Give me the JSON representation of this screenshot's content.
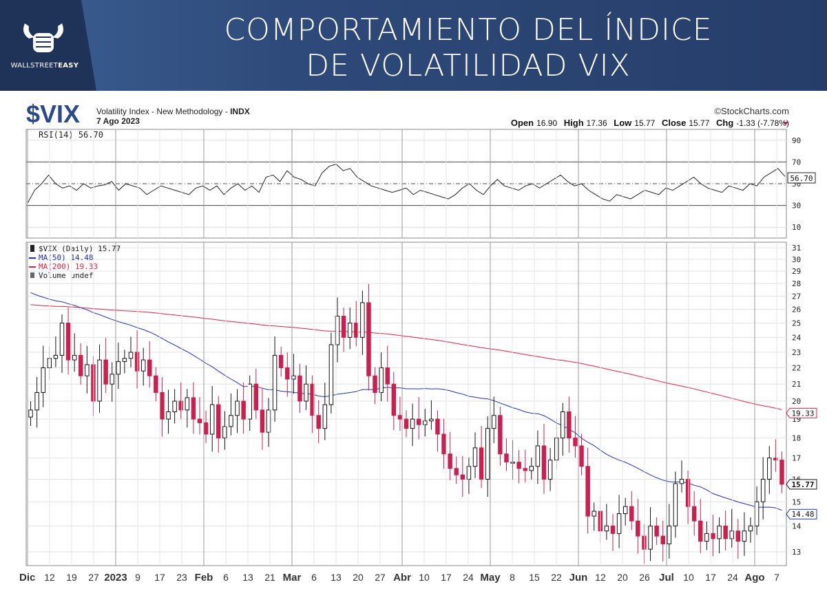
{
  "banner": {
    "title_line1": "COMPORTAMIENTO DEL ÍNDICE",
    "title_line2": "DE VOLATILIDAD VIX",
    "logo_text_a": "WALLSTREET",
    "logo_text_b": "EASY"
  },
  "header": {
    "symbol": "$VIX",
    "description": "Volatility Index - New Methodology - ",
    "exchange": "INDX",
    "date": "7 Ago 2023",
    "source": "©StockCharts.com",
    "ohlc": {
      "open_label": "Open",
      "open": "16.90",
      "high_label": "High",
      "high": "17.36",
      "low_label": "Low",
      "low": "15.77",
      "close_label": "Close",
      "close": "15.77",
      "chg_label": "Chg",
      "chg": "-1.33 (-7.78%)"
    }
  },
  "rsi_legend": "RSI(14) 56.70",
  "price_legend": {
    "main": "$VIX (Daily) 15.77",
    "ma50": "MA(50) 14.48",
    "ma200": "MA(200) 19.33",
    "volume": "Volume undef"
  },
  "colors": {
    "up_candle": "#ffffff",
    "down_candle": "#cc1f4f",
    "black_candle": "#000000",
    "ma50": "#2233aa",
    "ma200": "#dd2244",
    "banner": "#2e4a7a"
  },
  "chart_data": {
    "type": "candlestick",
    "title": "$VIX",
    "rsi": {
      "name": "RSI(14)",
      "last": 56.7,
      "ticks": [
        90,
        70,
        50,
        30,
        10
      ],
      "levels": [
        70,
        50,
        30
      ],
      "ylim": [
        0,
        100
      ],
      "values": [
        32,
        44,
        50,
        58,
        50,
        46,
        48,
        44,
        50,
        46,
        48,
        49,
        52,
        44,
        50,
        48,
        46,
        40,
        44,
        48,
        46,
        44,
        42,
        40,
        46,
        48,
        44,
        48,
        40,
        46,
        50,
        44,
        48,
        42,
        56,
        58,
        52,
        62,
        56,
        54,
        50,
        48,
        60,
        66,
        68,
        62,
        64,
        56,
        52,
        48,
        46,
        44,
        42,
        44,
        46,
        40,
        44,
        42,
        40,
        38,
        36,
        40,
        46,
        50,
        44,
        40,
        48,
        54,
        48,
        46,
        44,
        48,
        50,
        46,
        50,
        54,
        58,
        52,
        48,
        50,
        44,
        40,
        36,
        34,
        40,
        38,
        36,
        40,
        44,
        42,
        40,
        46,
        44,
        48,
        52,
        56,
        50,
        46,
        44,
        42,
        48,
        46,
        44,
        50,
        48,
        56,
        60,
        64,
        56.7
      ]
    },
    "price": {
      "ticks": [
        31,
        30,
        29,
        28,
        27,
        26,
        25,
        24,
        23,
        22,
        21,
        20,
        19,
        18,
        17,
        16,
        15,
        14,
        13
      ],
      "ylim": [
        12.5,
        31.5
      ],
      "log_scale": true,
      "last_close": 15.77,
      "closes": [
        19.5,
        20.5,
        22.0,
        22.6,
        22.8,
        25.0,
        22.5,
        22.8,
        21.5,
        22.2,
        20.0,
        22.5,
        21.0,
        21.6,
        22.4,
        22.6,
        23.0,
        21.8,
        22.5,
        21.5,
        20.5,
        19.0,
        19.4,
        20.0,
        19.5,
        20.2,
        19.0,
        18.8,
        18.2,
        19.8,
        18.0,
        18.6,
        19.2,
        20.0,
        19.0,
        21.0,
        19.5,
        18.3,
        19.5,
        22.8,
        22.0,
        21.3,
        21.5,
        20.0,
        21.0,
        19.2,
        18.5,
        19.8,
        23.5,
        25.5,
        24.0,
        25.0,
        24.0,
        26.5,
        21.5,
        20.5,
        22.0,
        21.0,
        19.2,
        19.0,
        18.5,
        19.0,
        18.7,
        18.9,
        19.0,
        18.2,
        17.2,
        16.5,
        16.2,
        16.0,
        16.6,
        17.5,
        16.0,
        18.5,
        19.2,
        17.2,
        16.8,
        16.8,
        16.5,
        16.4,
        16.6,
        17.6,
        16.0,
        16.9,
        18.0,
        19.4,
        18.0,
        17.6,
        16.6,
        14.4,
        14.6,
        13.8,
        14.0,
        13.7,
        14.5,
        14.8,
        14.2,
        13.6,
        13.1,
        14.0,
        13.6,
        13.3,
        14.0,
        15.8,
        16.0,
        14.8,
        14.2,
        13.4,
        13.7,
        13.5,
        14.0,
        13.5,
        13.8,
        13.4,
        13.8,
        14.0,
        15.0,
        16.0,
        17.0,
        16.9,
        15.77
      ]
    },
    "ma50": {
      "name": "MA(50)",
      "last": 14.48
    },
    "ma200": {
      "name": "MA(200)",
      "last": 19.33
    },
    "x_labels": [
      {
        "label": "Dic",
        "bold": true
      },
      {
        "label": "12"
      },
      {
        "label": "19"
      },
      {
        "label": "27"
      },
      {
        "label": "2023",
        "bold": true
      },
      {
        "label": "9"
      },
      {
        "label": "17"
      },
      {
        "label": "23"
      },
      {
        "label": "Feb",
        "bold": true
      },
      {
        "label": "6"
      },
      {
        "label": "13"
      },
      {
        "label": "21"
      },
      {
        "label": "Mar",
        "bold": true
      },
      {
        "label": "6"
      },
      {
        "label": "13"
      },
      {
        "label": "20"
      },
      {
        "label": "27"
      },
      {
        "label": "Abr",
        "bold": true
      },
      {
        "label": "10"
      },
      {
        "label": "17"
      },
      {
        "label": "24"
      },
      {
        "label": "May",
        "bold": true
      },
      {
        "label": "8"
      },
      {
        "label": "15"
      },
      {
        "label": "22"
      },
      {
        "label": "Jun",
        "bold": true
      },
      {
        "label": "12"
      },
      {
        "label": "20"
      },
      {
        "label": "26"
      },
      {
        "label": "Jul",
        "bold": true
      },
      {
        "label": "10"
      },
      {
        "label": "17"
      },
      {
        "label": "24"
      },
      {
        "label": "Ago",
        "bold": true
      },
      {
        "label": "7"
      }
    ]
  }
}
